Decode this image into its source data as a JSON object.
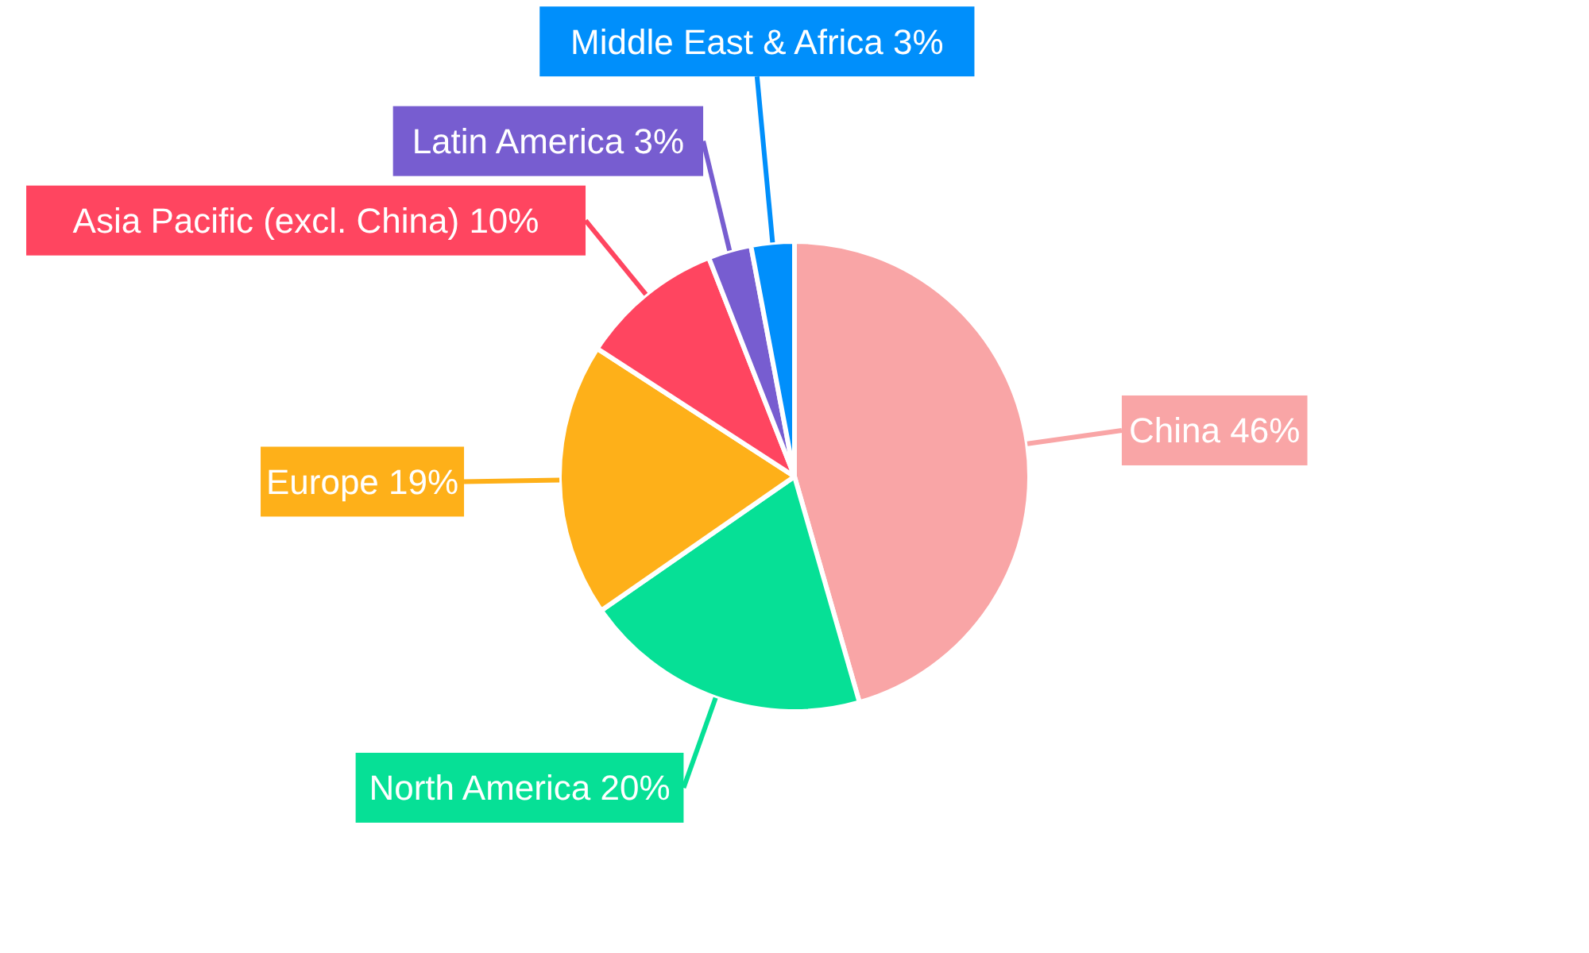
{
  "chart_data": {
    "type": "pie",
    "categories": [
      "China",
      "North America",
      "Europe",
      "Asia Pacific (excl. China)",
      "Latin America",
      "Middle East & Africa"
    ],
    "values": [
      46,
      20,
      19,
      10,
      3,
      3
    ],
    "value_labels": [
      "46%",
      "20%",
      "19%",
      "10%",
      "3%",
      "3%"
    ],
    "colors": [
      "#f9a5a6",
      "#06e096",
      "#feb019",
      "#ff4560",
      "#775dd0",
      "#008ffb"
    ],
    "legend": false
  }
}
